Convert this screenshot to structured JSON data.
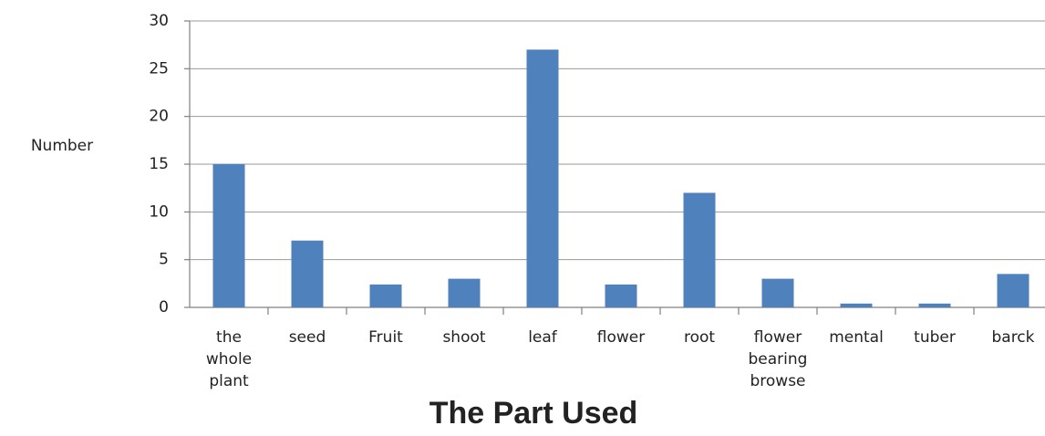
{
  "chart_data": {
    "type": "bar",
    "x_label": "The Part Used",
    "y_label": "Number",
    "categories": [
      "the whole plant",
      "seed",
      "Fruit",
      "shoot",
      "leaf",
      "flower",
      "root",
      "flower bearing browse",
      "mental",
      "tuber",
      "barck"
    ],
    "values": [
      15,
      7,
      2.4,
      3,
      27,
      2.4,
      12,
      3,
      0.4,
      0.4,
      3.5
    ],
    "color": "#4f81bd",
    "ylim": [
      0,
      30
    ],
    "yticks": [
      0,
      5,
      10,
      15,
      20,
      25,
      30
    ],
    "grid": true
  }
}
